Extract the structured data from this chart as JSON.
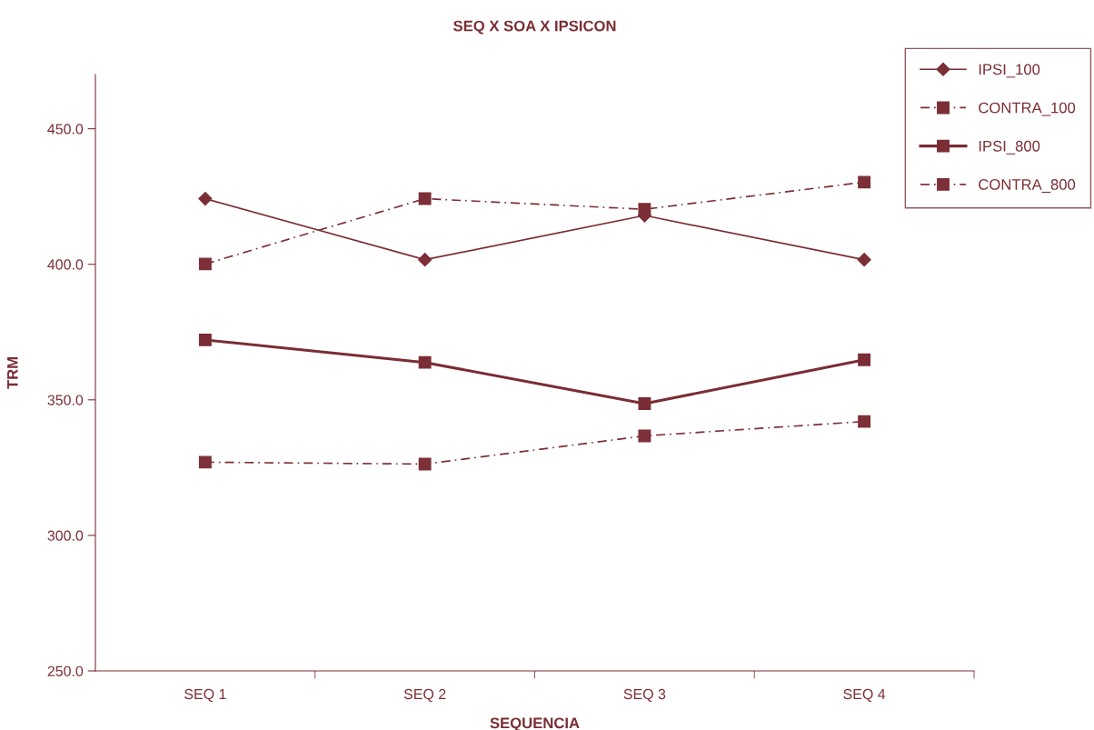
{
  "chart_data": {
    "type": "line",
    "title": "SEQ X SOA X IPSICON",
    "xlabel": "SEQUENCIA",
    "ylabel": "TRM",
    "categories": [
      "SEQ 1",
      "SEQ 2",
      "SEQ 3",
      "SEQ 4"
    ],
    "ylim": [
      250,
      470
    ],
    "yticks": [
      {
        "value": 250,
        "label": "250.0"
      },
      {
        "value": 300,
        "label": "300.0"
      },
      {
        "value": 350,
        "label": "350.0"
      },
      {
        "value": 400,
        "label": "400.0"
      },
      {
        "value": 450,
        "label": "450.0"
      }
    ],
    "grid": false,
    "legend": "top right",
    "series": [
      {
        "name": "IPSI_100",
        "color": "#7b2e35",
        "marker": "diamond",
        "line_style": "solid",
        "values": [
          424.2,
          401.7,
          418.0,
          401.7
        ]
      },
      {
        "name": "CONTRA_100",
        "color": "#7c2f36",
        "marker": "square",
        "line_style": "dashed",
        "values": [
          400.1,
          424.2,
          420.3,
          430.3
        ]
      },
      {
        "name": "IPSI_800",
        "color": "#7a2d34",
        "marker": "square",
        "line_style": "solid",
        "values": [
          372.1,
          363.8,
          348.6,
          364.8
        ]
      },
      {
        "name": "CONTRA_800",
        "color": "#7d3037",
        "marker": "square",
        "line_style": "dashed",
        "values": [
          327.0,
          326.3,
          336.7,
          342.0
        ]
      }
    ]
  }
}
